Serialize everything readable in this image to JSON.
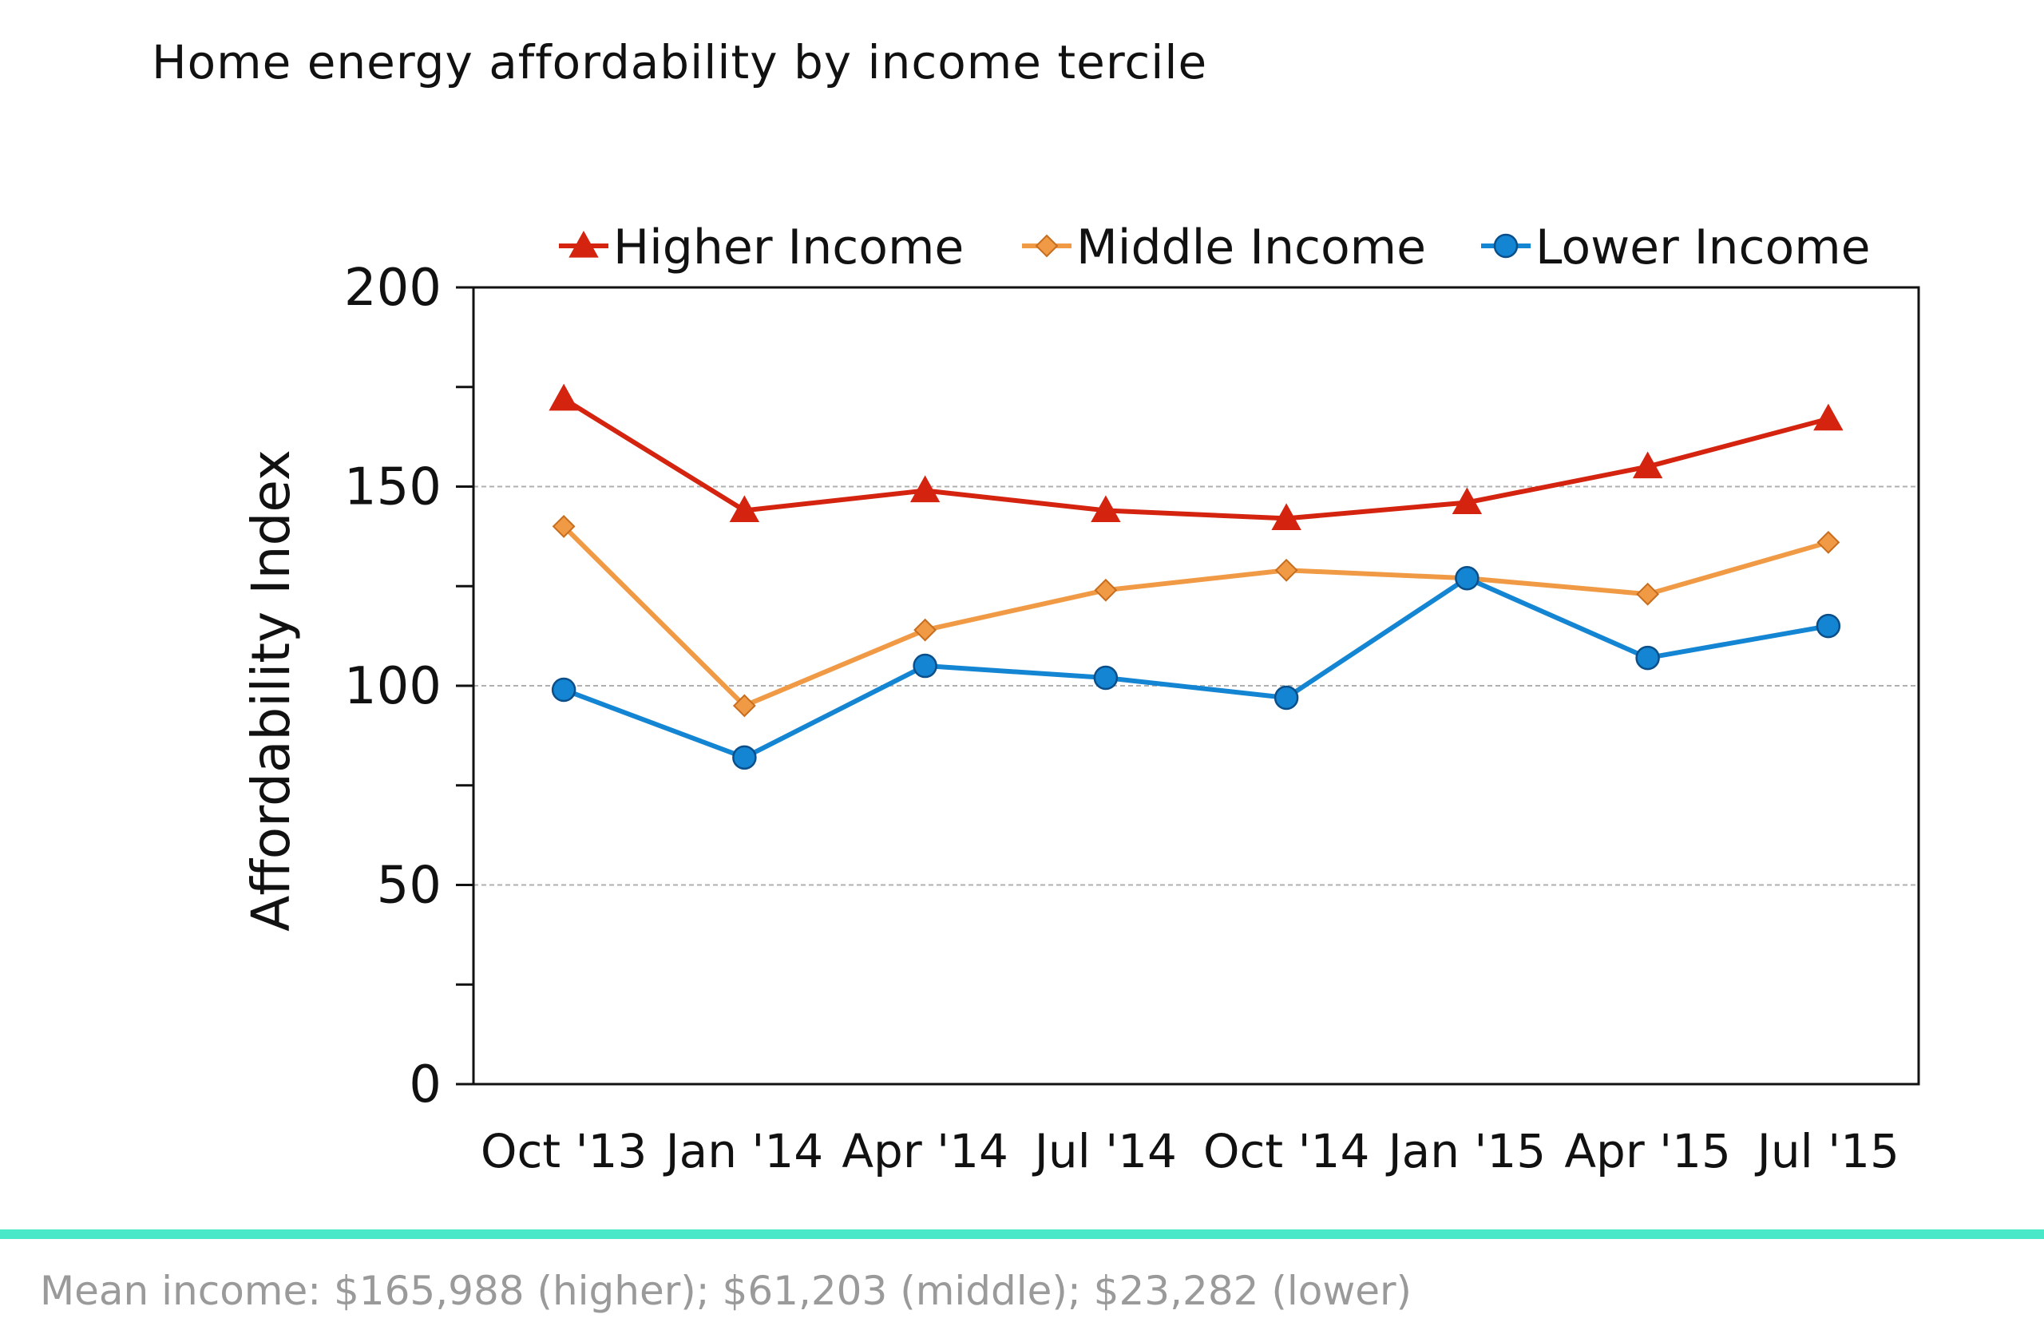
{
  "header": {
    "title": "Home energy affordability by income tercile"
  },
  "footer": {
    "note": "Mean income: $165,988 (higher); $61,203 (middle); $23,282 (lower)"
  },
  "colors": {
    "higher": "#d42410",
    "middle": "#f19a45",
    "lower": "#1485d2",
    "gridline": "#b0b0b0",
    "accent_line": "#48e8c8"
  },
  "chart_data": {
    "type": "line",
    "title": "",
    "xlabel": "",
    "ylabel": "Affordability Index",
    "ylim": [
      0,
      200
    ],
    "yticks": [
      "0",
      "50",
      "100",
      "150",
      "200"
    ],
    "grid": {
      "y": true,
      "x": false
    },
    "legend": "top",
    "categories": [
      "Oct '13",
      "Jan '14",
      "Apr '14",
      "Jul '14",
      "Oct '14",
      "Jan '15",
      "Apr '15",
      "Jul '15"
    ],
    "series": [
      {
        "name": "Higher Income",
        "marker": "triangle",
        "color": "#d42410",
        "values": [
          172,
          144,
          149,
          144,
          142,
          146,
          155,
          167
        ]
      },
      {
        "name": "Middle Income",
        "marker": "diamond",
        "color": "#f19a45",
        "values": [
          140,
          95,
          114,
          124,
          129,
          127,
          123,
          136
        ]
      },
      {
        "name": "Lower Income",
        "marker": "circle",
        "color": "#1485d2",
        "values": [
          99,
          82,
          105,
          102,
          97,
          127,
          107,
          115
        ]
      }
    ]
  }
}
